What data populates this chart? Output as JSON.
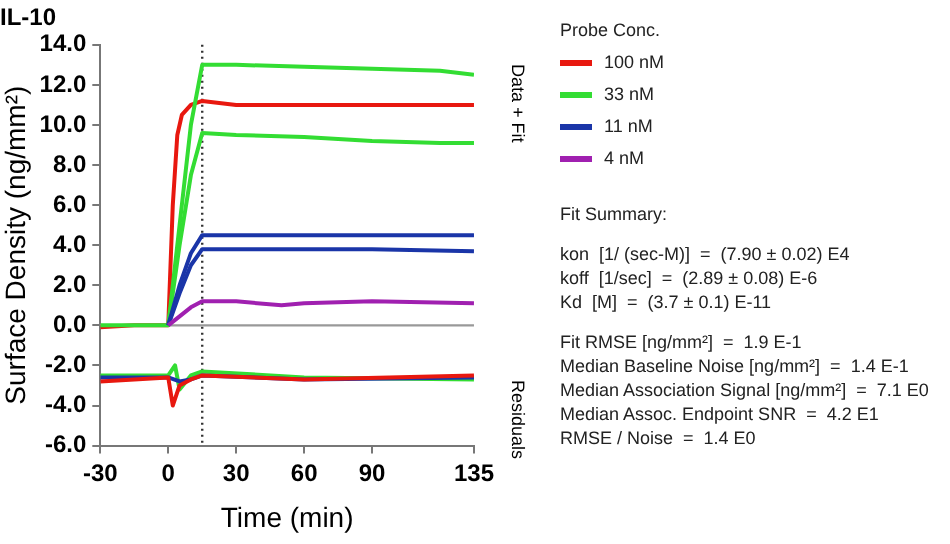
{
  "chart_data": {
    "type": "line",
    "title": "IL-10",
    "xlabel": "Time (min)",
    "ylabel": "Surface Density (ng/mm²)",
    "legend_title": "Probe Conc.",
    "legend": "right",
    "grid": false,
    "marker": "none",
    "line_style": "solid",
    "xlim": [
      -30,
      135
    ],
    "xticks": [
      -30,
      0,
      30,
      60,
      90,
      135
    ],
    "ylim": [
      -6,
      14
    ],
    "yticks": [
      {
        "value": -6,
        "label": "-6.0"
      },
      {
        "value": -4,
        "label": "-4.0"
      },
      {
        "value": -2,
        "label": "-2.0"
      },
      {
        "value": 0,
        "label": "0.0"
      },
      {
        "value": 2,
        "label": "2.0"
      },
      {
        "value": 4,
        "label": "4.0"
      },
      {
        "value": 6,
        "label": "6.0"
      },
      {
        "value": 8,
        "label": "8.0"
      },
      {
        "value": 10,
        "label": "10.0"
      },
      {
        "value": 12,
        "label": "12.0"
      },
      {
        "value": 14,
        "label": "14.0"
      }
    ],
    "ref_lines": [
      {
        "axis": "x",
        "value": 15,
        "color": "#333333",
        "line_style": "dotted"
      },
      {
        "axis": "y",
        "value": 0,
        "color": "#999999",
        "line_style": "solid"
      }
    ],
    "series": [
      {
        "name": "100 nM",
        "color": "#e8180f",
        "x": [
          -30,
          -15,
          0,
          2,
          4,
          6,
          10,
          15,
          30,
          60,
          90,
          120,
          135
        ],
        "values": [
          -0.1,
          0,
          0,
          6,
          9.5,
          10.5,
          11,
          11.2,
          11,
          11,
          11,
          11,
          11
        ]
      },
      {
        "name": "33 nM",
        "color": "#33dd33",
        "x": [
          -30,
          0,
          5,
          10,
          15,
          30,
          60,
          90,
          120,
          135
        ],
        "values": [
          0,
          0,
          5,
          10,
          13,
          13,
          12.9,
          12.8,
          12.7,
          12.5
        ]
      },
      {
        "color": "#33dd33",
        "x": [
          0,
          5,
          10,
          15,
          30,
          60,
          90,
          120,
          135
        ],
        "values": [
          0,
          4,
          7.5,
          9.6,
          9.5,
          9.4,
          9.2,
          9.1,
          9.1
        ]
      },
      {
        "name": "11 nM",
        "color": "#1a35a8",
        "x": [
          0,
          5,
          10,
          15,
          30,
          60,
          90,
          135
        ],
        "values": [
          0,
          2,
          3.6,
          4.5,
          4.5,
          4.5,
          4.5,
          4.5
        ]
      },
      {
        "color": "#1a35a8",
        "x": [
          0,
          5,
          10,
          15,
          30,
          60,
          90,
          135
        ],
        "values": [
          0,
          1.6,
          3,
          3.8,
          3.8,
          3.8,
          3.8,
          3.7
        ]
      },
      {
        "name": "4 nM",
        "color": "#a020b0",
        "x": [
          0,
          10,
          15,
          30,
          50,
          60,
          90,
          135
        ],
        "values": [
          0,
          0.9,
          1.2,
          1.2,
          1.0,
          1.1,
          1.2,
          1.1
        ]
      },
      {
        "color": "#33dd33",
        "x": [
          -30,
          0,
          3,
          5,
          10,
          15,
          60,
          135
        ],
        "values": [
          -2.5,
          -2.5,
          -2,
          -3.2,
          -2.5,
          -2.3,
          -2.6,
          -2.7
        ]
      },
      {
        "color": "#1a35a8",
        "x": [
          -30,
          0,
          5,
          10,
          15,
          60,
          135
        ],
        "values": [
          -2.6,
          -2.6,
          -2.8,
          -2.7,
          -2.5,
          -2.7,
          -2.6
        ]
      },
      {
        "color": "#e8180f",
        "x": [
          -30,
          0,
          2,
          5,
          10,
          15,
          60,
          135
        ],
        "values": [
          -2.8,
          -2.6,
          -4,
          -3,
          -2.7,
          -2.5,
          -2.7,
          -2.5
        ]
      }
    ],
    "annotations": [
      "Data + Fit",
      "Residuals",
      "Fit Summary:",
      "kon  [1/ (sec-M)]  =  (7.90 ± 0.02) E4",
      "koff  [1/sec]  =  (2.89 ± 0.08) E-6",
      "Kd  [M]  =  (3.7 ± 0.1) E-11",
      "Fit RMSE [ng/mm²]  =  1.9 E-1",
      "Median Baseline Noise [ng/mm²]  =  1.4 E-1",
      "Median Association Signal [ng/mm²]  =  7.1 E0",
      "Median Assoc. Endpoint SNR  =  4.2 E1",
      "RMSE / Noise  =  1.4 E0"
    ]
  }
}
